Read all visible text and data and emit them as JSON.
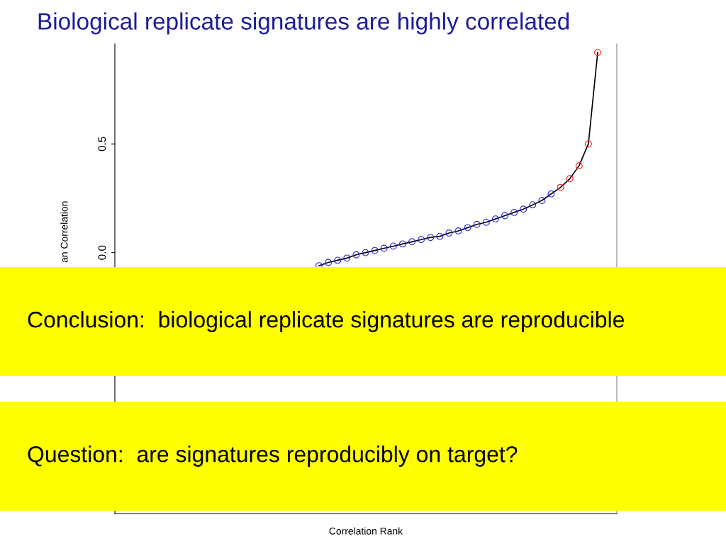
{
  "chart_data": {
    "type": "scatter",
    "title": "Biological replicate signatures are highly correlated",
    "xlabel": "Correlation Rank",
    "ylabel": "an Correlation",
    "categories": [
      null,
      null,
      null,
      null,
      null,
      null,
      null,
      null,
      null,
      null,
      null,
      null,
      null,
      null,
      null,
      null,
      null,
      null,
      null,
      null,
      null,
      null,
      null,
      null,
      null,
      null,
      null,
      null,
      null,
      null,
      null,
      null,
      null,
      null,
      null,
      null,
      null,
      null,
      null,
      null,
      null,
      null,
      null,
      null,
      null,
      null,
      null,
      null,
      null,
      null,
      null
    ],
    "series": [
      {
        "type": "line",
        "color": "#000000",
        "marker": "none",
        "values": [
          null,
          null,
          null,
          null,
          null,
          null,
          null,
          null,
          null,
          null,
          null,
          null,
          null,
          null,
          null,
          null,
          null,
          null,
          null,
          null,
          -0.06,
          -0.045,
          -0.035,
          -0.025,
          -0.01,
          0.0,
          0.01,
          0.02,
          0.03,
          0.04,
          0.05,
          0.06,
          0.07,
          0.075,
          0.09,
          0.1,
          0.115,
          0.13,
          0.14,
          0.155,
          0.17,
          0.185,
          0.2,
          0.22,
          0.24,
          0.27,
          0.3,
          0.34,
          0.4,
          0.5,
          0.92
        ]
      },
      {
        "color": "#2a2ad6",
        "values": [
          null,
          null,
          null,
          null,
          null,
          null,
          null,
          null,
          null,
          null,
          null,
          null,
          null,
          null,
          null,
          null,
          null,
          null,
          null,
          null,
          -0.06,
          -0.045,
          -0.035,
          -0.025,
          -0.01,
          0.0,
          0.01,
          0.02,
          0.03,
          0.04,
          0.05,
          0.06,
          0.07,
          0.075,
          0.09,
          0.1,
          0.115,
          0.13,
          0.14,
          0.155,
          0.17,
          0.185,
          0.2,
          0.22,
          0.24,
          0.27,
          null,
          null,
          null,
          null,
          null
        ]
      },
      {
        "color": "#f02020",
        "values": [
          null,
          null,
          null,
          null,
          null,
          null,
          null,
          null,
          null,
          null,
          null,
          null,
          null,
          null,
          null,
          null,
          null,
          null,
          null,
          null,
          null,
          null,
          null,
          null,
          null,
          null,
          null,
          null,
          null,
          null,
          null,
          null,
          null,
          null,
          null,
          null,
          null,
          null,
          null,
          null,
          null,
          null,
          null,
          null,
          null,
          null,
          0.3,
          0.34,
          0.4,
          0.5,
          0.92
        ]
      }
    ],
    "marker": "circle",
    "ylim": [
      -1.2,
      0.96
    ],
    "yticks": [
      {
        "value": 0,
        "label": "0.0"
      },
      {
        "value": 0.5,
        "label": "0.5"
      }
    ],
    "tick_labels": "y",
    "grid": false,
    "legend": false,
    "annotations": [
      "Conclusion:  biological replicate signatures are reproducible",
      "Question:  are signatures reproducibly on target?"
    ]
  }
}
